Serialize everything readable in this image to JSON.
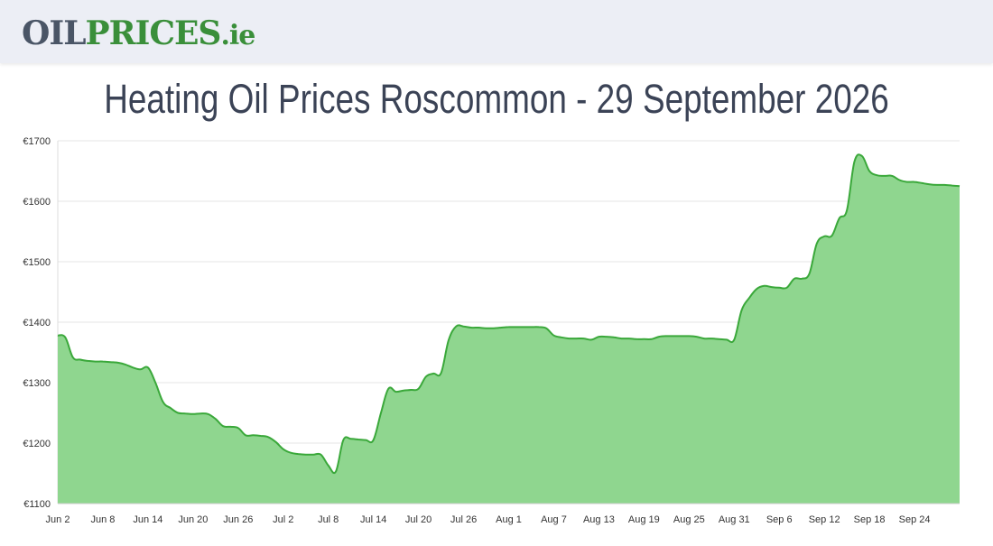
{
  "logo": {
    "part1": "OIL",
    "part2": "PRICES",
    "part3": ".ie"
  },
  "page_title": "Heating Oil Prices Roscommon - 29 September 2026",
  "colors": {
    "line": "#3aa83a",
    "fill": "#8fd68f",
    "grid": "#e6e6e6",
    "axis_text": "#333333"
  },
  "chart_data": {
    "type": "area",
    "title": "",
    "xlabel": "",
    "ylabel": "",
    "ylim": [
      1100,
      1700
    ],
    "y_ticks": [
      1100,
      1200,
      1300,
      1400,
      1500,
      1600,
      1700
    ],
    "y_tick_labels": [
      "€1100",
      "€1200",
      "€1300",
      "€1400",
      "€1500",
      "€1600",
      "€1700"
    ],
    "x_tick_labels": [
      "Jun 2",
      "Jun 8",
      "Jun 14",
      "Jun 20",
      "Jun 26",
      "Jul 2",
      "Jul 8",
      "Jul 14",
      "Jul 20",
      "Jul 26",
      "Aug 1",
      "Aug 7",
      "Aug 13",
      "Aug 19",
      "Aug 25",
      "Aug 31",
      "Sep 6",
      "Sep 12",
      "Sep 18",
      "Sep 24"
    ],
    "x_start": "Jun 2",
    "days": 120,
    "series": [
      {
        "points": [
          [
            0,
            1378
          ],
          [
            1,
            1375
          ],
          [
            2,
            1342
          ],
          [
            3,
            1338
          ],
          [
            4,
            1336
          ],
          [
            5,
            1335
          ],
          [
            6,
            1335
          ],
          [
            7,
            1334
          ],
          [
            8,
            1333
          ],
          [
            9,
            1330
          ],
          [
            10,
            1325
          ],
          [
            11,
            1322
          ],
          [
            12,
            1325
          ],
          [
            13,
            1300
          ],
          [
            14,
            1268
          ],
          [
            15,
            1258
          ],
          [
            16,
            1250
          ],
          [
            17,
            1249
          ],
          [
            18,
            1248
          ],
          [
            19,
            1249
          ],
          [
            20,
            1248
          ],
          [
            21,
            1240
          ],
          [
            22,
            1228
          ],
          [
            23,
            1227
          ],
          [
            24,
            1225
          ],
          [
            25,
            1213
          ],
          [
            26,
            1213
          ],
          [
            27,
            1212
          ],
          [
            28,
            1210
          ],
          [
            29,
            1202
          ],
          [
            30,
            1190
          ],
          [
            31,
            1184
          ],
          [
            32,
            1182
          ],
          [
            33,
            1181
          ],
          [
            34,
            1181
          ],
          [
            35,
            1181
          ],
          [
            36,
            1163
          ],
          [
            37,
            1153
          ],
          [
            38,
            1205
          ],
          [
            39,
            1207
          ],
          [
            40,
            1206
          ],
          [
            41,
            1205
          ],
          [
            42,
            1205
          ],
          [
            43,
            1250
          ],
          [
            44,
            1290
          ],
          [
            45,
            1285
          ],
          [
            46,
            1287
          ],
          [
            47,
            1288
          ],
          [
            48,
            1290
          ],
          [
            49,
            1310
          ],
          [
            50,
            1315
          ],
          [
            51,
            1316
          ],
          [
            52,
            1370
          ],
          [
            53,
            1393
          ],
          [
            54,
            1393
          ],
          [
            55,
            1391
          ],
          [
            56,
            1391
          ],
          [
            57,
            1390
          ],
          [
            58,
            1390
          ],
          [
            59,
            1391
          ],
          [
            60,
            1392
          ],
          [
            61,
            1392
          ],
          [
            62,
            1392
          ],
          [
            63,
            1392
          ],
          [
            64,
            1392
          ],
          [
            65,
            1390
          ],
          [
            66,
            1378
          ],
          [
            67,
            1375
          ],
          [
            68,
            1373
          ],
          [
            69,
            1373
          ],
          [
            70,
            1373
          ],
          [
            71,
            1371
          ],
          [
            72,
            1376
          ],
          [
            73,
            1376
          ],
          [
            74,
            1375
          ],
          [
            75,
            1373
          ],
          [
            76,
            1373
          ],
          [
            77,
            1372
          ],
          [
            78,
            1372
          ],
          [
            79,
            1372
          ],
          [
            80,
            1376
          ],
          [
            81,
            1377
          ],
          [
            82,
            1377
          ],
          [
            83,
            1377
          ],
          [
            84,
            1377
          ],
          [
            85,
            1376
          ],
          [
            86,
            1373
          ],
          [
            87,
            1373
          ],
          [
            88,
            1372
          ],
          [
            89,
            1371
          ],
          [
            90,
            1371
          ],
          [
            91,
            1420
          ],
          [
            92,
            1440
          ],
          [
            93,
            1455
          ],
          [
            94,
            1460
          ],
          [
            95,
            1458
          ],
          [
            96,
            1457
          ],
          [
            97,
            1457
          ],
          [
            98,
            1472
          ],
          [
            99,
            1472
          ],
          [
            100,
            1480
          ],
          [
            101,
            1530
          ],
          [
            102,
            1542
          ],
          [
            103,
            1543
          ],
          [
            104,
            1572
          ],
          [
            105,
            1585
          ],
          [
            106,
            1665
          ],
          [
            107,
            1675
          ],
          [
            108,
            1650
          ],
          [
            109,
            1643
          ],
          [
            110,
            1642
          ],
          [
            111,
            1642
          ],
          [
            112,
            1635
          ],
          [
            113,
            1632
          ],
          [
            114,
            1632
          ],
          [
            115,
            1630
          ],
          [
            116,
            1628
          ],
          [
            117,
            1627
          ],
          [
            118,
            1627
          ],
          [
            119,
            1626
          ],
          [
            120,
            1625
          ]
        ]
      }
    ]
  }
}
